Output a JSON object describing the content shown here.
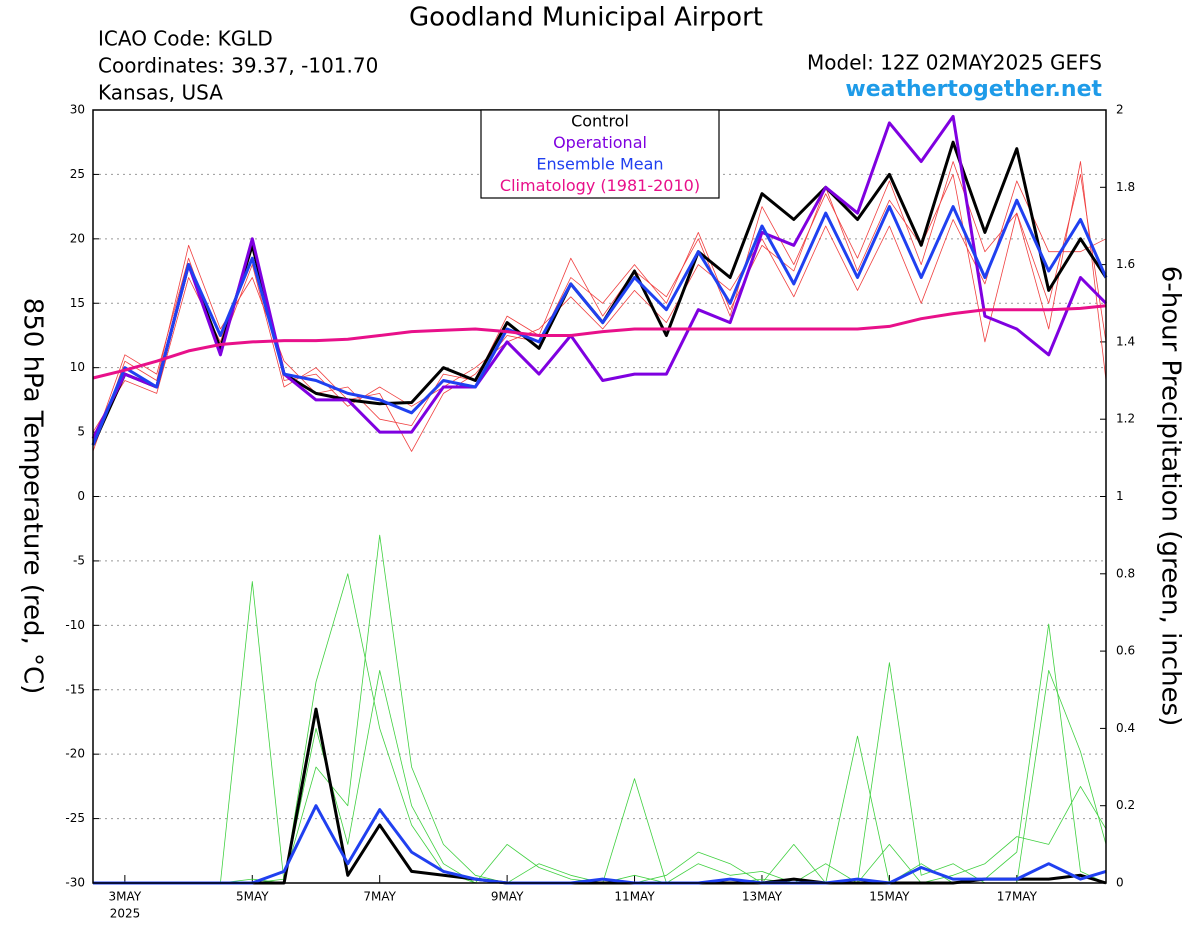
{
  "chart_data": {
    "type": "line",
    "title": "Goodland Municipal Airport",
    "info_left": [
      "ICAO Code: KGLD",
      "Coordinates: 39.37, -101.70",
      "Kansas, USA"
    ],
    "model": "Model: 12Z 02MAY2025 GEFS",
    "site": "weathertogether.net",
    "y_label": "850 hPa Temperature (red, °C)",
    "y2_label": "6-hour Precipitation (green, inches)",
    "x_sublabel": "2025",
    "xlim": [
      2.5,
      18.4
    ],
    "xticks": [
      {
        "value": 3,
        "label": "3MAY"
      },
      {
        "value": 5,
        "label": "5MAY"
      },
      {
        "value": 7,
        "label": "7MAY"
      },
      {
        "value": 9,
        "label": "9MAY"
      },
      {
        "value": 11,
        "label": "11MAY"
      },
      {
        "value": 13,
        "label": "13MAY"
      },
      {
        "value": 15,
        "label": "15MAY"
      },
      {
        "value": 17,
        "label": "17MAY"
      }
    ],
    "ylim": [
      -30,
      30
    ],
    "yticks": [
      -30,
      -25,
      -20,
      -15,
      -10,
      -5,
      0,
      5,
      10,
      15,
      20,
      25,
      30
    ],
    "y2lim": [
      0,
      2
    ],
    "y2ticks": [
      0,
      0.2,
      0.4,
      0.6,
      0.8,
      1,
      1.2,
      1.4,
      1.6,
      1.8,
      2
    ],
    "grid": true,
    "x": [
      2.5,
      3,
      3.5,
      4,
      4.5,
      5,
      5.5,
      6,
      6.5,
      7,
      7.5,
      8,
      8.5,
      9,
      9.5,
      10,
      10.5,
      11,
      11.5,
      12,
      12.5,
      13,
      13.5,
      14,
      14.5,
      15,
      15.5,
      16,
      16.5,
      17,
      17.5,
      18,
      18.4
    ],
    "temperature_members": [
      {
        "color": "#f04040",
        "values": [
          3.5,
          10.5,
          9,
          19.5,
          13,
          17,
          10.5,
          8,
          8.5,
          6,
          5.5,
          9.5,
          9,
          14,
          12.5,
          18.5,
          14,
          17.5,
          15.5,
          20,
          14,
          22.5,
          18,
          23.5,
          18.5,
          24.5,
          18,
          26,
          19,
          22,
          15,
          25,
          12
        ]
      },
      {
        "color": "#f04040",
        "values": [
          5,
          9,
          8,
          17,
          12,
          19.5,
          9,
          9.5,
          7,
          8.5,
          7,
          8.5,
          10,
          12,
          13,
          15.5,
          13,
          16,
          13.5,
          18,
          16,
          20,
          15.5,
          21,
          16,
          21,
          15,
          21.5,
          16.5,
          24.5,
          19,
          19,
          20
        ]
      },
      {
        "color": "#f04040",
        "values": [
          4,
          11,
          9.5,
          18.5,
          11.5,
          18,
          8.5,
          10,
          7.5,
          8,
          3.5,
          8,
          9.5,
          12.5,
          12,
          17,
          15,
          18,
          15,
          20.5,
          14.5,
          19.5,
          17.5,
          24,
          17.5,
          23,
          19.5,
          25,
          12,
          22,
          13,
          26,
          9
        ]
      }
    ],
    "precip_members": [
      {
        "color": "#40d040",
        "values": [
          0,
          0,
          0,
          0,
          0,
          0.78,
          0,
          0.4,
          0.1,
          0.55,
          0.2,
          0.05,
          0,
          0,
          0,
          0,
          0,
          0.02,
          0,
          0,
          0,
          0.01,
          0,
          0,
          0.38,
          0,
          0.05,
          0,
          0.01,
          0.08,
          0.67,
          0.03,
          0
        ]
      },
      {
        "color": "#40d040",
        "values": [
          0,
          0,
          0,
          0,
          0,
          0,
          0.01,
          0.3,
          0.2,
          0.9,
          0.3,
          0.1,
          0.02,
          0,
          0.05,
          0.02,
          0,
          0.27,
          0,
          0.05,
          0.02,
          0.03,
          0,
          0.05,
          0,
          0.57,
          0.02,
          0.05,
          0,
          0,
          0.55,
          0.34,
          0.1
        ]
      },
      {
        "color": "#40d040",
        "values": [
          0,
          0,
          0,
          0,
          0,
          0.01,
          0,
          0.52,
          0.8,
          0.4,
          0.15,
          0.03,
          0,
          0.1,
          0.04,
          0.01,
          0,
          0,
          0.02,
          0.08,
          0.05,
          0,
          0.1,
          0,
          0,
          0.1,
          0,
          0.02,
          0.05,
          0.12,
          0.1,
          0.25,
          0.14
        ]
      }
    ],
    "series": [
      {
        "name": "Control",
        "color": "#000000",
        "values": [
          4,
          9.5,
          8.5,
          18,
          11.5,
          19.5,
          9.5,
          8,
          7.5,
          7.2,
          7.3,
          10,
          9,
          13.5,
          11.5,
          16.5,
          13.5,
          17.5,
          12.5,
          19,
          17,
          23.5,
          21.5,
          24,
          21.5,
          25,
          19.5,
          27.5,
          20.5,
          27,
          16,
          20,
          17
        ]
      },
      {
        "name": "Operational",
        "color": "#7f00e0",
        "values": [
          4.5,
          9.5,
          8.5,
          18,
          11,
          20,
          9.5,
          7.5,
          7.5,
          5,
          5,
          8.5,
          8.5,
          12,
          9.5,
          12.5,
          9,
          9.5,
          9.5,
          14.5,
          13.5,
          20.5,
          19.5,
          24,
          22,
          29,
          26,
          29.5,
          14,
          13,
          11,
          17,
          15
        ]
      },
      {
        "name": "Ensemble Mean",
        "color": "#2040f0",
        "values": [
          4,
          10,
          8.5,
          18,
          12.5,
          18.5,
          9.5,
          9,
          8,
          7.5,
          6.5,
          9,
          8.5,
          13,
          12,
          16.5,
          13.5,
          17,
          14.5,
          19,
          15,
          21,
          16.5,
          22,
          17,
          22.5,
          17,
          22.5,
          17,
          23,
          17.5,
          21.5,
          17
        ]
      },
      {
        "name": "Climatology (1981-2010)",
        "color": "#e8108a",
        "values": [
          9.2,
          9.8,
          10.5,
          11.3,
          11.8,
          12,
          12.1,
          12.1,
          12.2,
          12.5,
          12.8,
          12.9,
          13,
          12.8,
          12.5,
          12.5,
          12.8,
          13,
          13,
          13,
          13,
          13,
          13,
          13,
          13,
          13.2,
          13.8,
          14.2,
          14.5,
          14.5,
          14.5,
          14.6,
          14.8
        ]
      }
    ],
    "precip_series": [
      {
        "color": "#000000",
        "axis": "y2",
        "values": [
          0,
          0,
          0,
          0,
          0,
          0,
          0,
          0.45,
          0.02,
          0.15,
          0.03,
          0.02,
          0.01,
          0,
          0,
          0,
          0,
          0,
          0,
          0,
          0,
          0,
          0.01,
          0,
          0,
          0,
          0,
          0,
          0.01,
          0.01,
          0.01,
          0.02,
          0
        ]
      },
      {
        "color": "#2040f0",
        "axis": "y2",
        "values": [
          0,
          0,
          0,
          0,
          0,
          0,
          0.03,
          0.2,
          0.05,
          0.19,
          0.08,
          0.03,
          0.01,
          0,
          0,
          0,
          0.01,
          0,
          0,
          0,
          0.01,
          0,
          0,
          0,
          0.01,
          0,
          0.04,
          0.01,
          0.01,
          0.01,
          0.05,
          0.01,
          0.03
        ]
      }
    ]
  }
}
